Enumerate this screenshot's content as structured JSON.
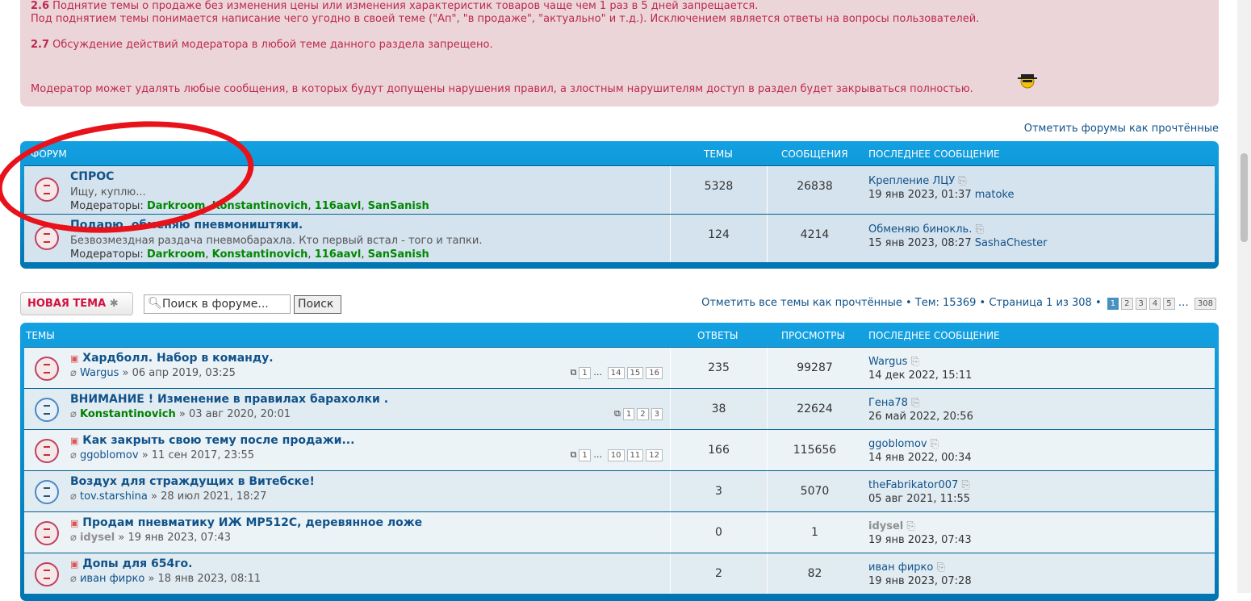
{
  "rules": {
    "r26_num": "2.6",
    "r26": " Поднятие темы о продаже без изменения цены или изменения характеристик товаров чаще чем 1 раз в 5 дней запрещается.",
    "r26b": "Под поднятием темы понимается написание чего угодно в своей теме (\"Ап\", \"в продаже\", \"актуально\" и т.д.). Исключением является ответы на вопросы пользователей.",
    "r27_num": "2.7",
    "r27": " Обсуждение действий модератора в любой теме данного раздела запрещено.",
    "note": "Модератор может удалять любые сообщения, в которых будут допущены нарушения правил, а злостным нарушителям доступ в раздел будет закрываться полностью."
  },
  "mark_forums": "Отметить форумы как прочтённые",
  "forums": {
    "headers": {
      "forum": "Форум",
      "topics": "Темы",
      "posts": "Сообщения",
      "last": "Последнее сообщение"
    },
    "moderators_label": "Модераторы: ",
    "rows": [
      {
        "title": "СПРОС",
        "desc": "Ищу, куплю...",
        "mods": [
          "Darkroom",
          "Konstantinovich",
          "116aavl",
          "SanSanish"
        ],
        "topics": "5328",
        "posts": "26838",
        "last_title": "Крепление ЛЦУ",
        "last_date": "19 янв 2023, 01:37",
        "last_user": "matoke"
      },
      {
        "title": "Подарю, обменяю пневмоништяки.",
        "desc": "Безвозмездная раздача пневмобарахла. Кто первый встал - того и тапки.",
        "mods": [
          "Darkroom",
          "Konstantinovich",
          "116aavl",
          "SanSanish"
        ],
        "topics": "124",
        "posts": "4214",
        "last_title": "Обменяю бинокль.",
        "last_date": "15 янв 2023, 08:27",
        "last_user": "SashaChester"
      }
    ]
  },
  "toolbar": {
    "new_topic": "НОВАЯ ТЕМА",
    "search_placeholder": "Поиск в форуме...",
    "search_button": "Поиск",
    "mark_topics": "Отметить все темы как прочтённые",
    "topics_count": "Тем: 15369",
    "page_info": "Страница 1 из 308",
    "pages": [
      "1",
      "2",
      "3",
      "4",
      "5",
      "...",
      "308"
    ]
  },
  "topics": {
    "headers": {
      "topics": "Темы",
      "replies": "Ответы",
      "views": "Просмотры",
      "last": "Последнее сообщение"
    },
    "rows": [
      {
        "title": "Хардболл. Набор в команду.",
        "author": "Wargus",
        "date": "06 апр 2019, 03:25",
        "pages": [
          "1",
          "...",
          "14",
          "15",
          "16"
        ],
        "replies": "235",
        "views": "99287",
        "last_user": "Wargus",
        "last_date": "14 дек 2022, 15:11",
        "icon": "red",
        "attach": true,
        "prefix": true
      },
      {
        "title": "ВНИМАНИЕ ! Изменение в правилах барахолки .",
        "author": "Konstantinovich",
        "author_color": "#008000",
        "date": "03 авг 2020, 20:01",
        "pages": [
          "1",
          "2",
          "3"
        ],
        "replies": "38",
        "views": "22624",
        "last_user": "Гена78",
        "last_date": "26 май 2022, 20:56",
        "icon": "blue",
        "attach": true,
        "prefix": false
      },
      {
        "title": "Как закрыть свою тему после продажи...",
        "author": "ggoblomov",
        "date": "11 сен 2017, 23:55",
        "pages": [
          "1",
          "...",
          "10",
          "11",
          "12"
        ],
        "replies": "166",
        "views": "115656",
        "last_user": "ggoblomov",
        "last_date": "14 янв 2022, 00:34",
        "icon": "red",
        "attach": true,
        "prefix": true
      },
      {
        "title": "Воздух для страждущих в Витебске!",
        "author": "tov.starshina",
        "date": "28 июл 2021, 18:27",
        "pages": [],
        "replies": "3",
        "views": "5070",
        "last_user": "theFabrikator007",
        "last_date": "05 авг 2021, 11:55",
        "icon": "blue",
        "attach": true,
        "prefix": false
      },
      {
        "title": "Продам пневматику ИЖ МР512С, деревянное ложе",
        "author": "idysel",
        "author_color": "#8f8f8f",
        "date": "19 янв 2023, 07:43",
        "pages": [],
        "replies": "0",
        "views": "1",
        "last_user": "idysel",
        "last_date": "19 янв 2023, 07:43",
        "icon": "red",
        "attach": true,
        "prefix": true
      },
      {
        "title": "Допы для 654го.",
        "author": "иван фирко",
        "date": "18 янв 2023, 08:11",
        "pages": [],
        "replies": "2",
        "views": "82",
        "last_user": "иван фирко",
        "last_date": "19 янв 2023, 07:28",
        "icon": "red",
        "attach": true,
        "prefix": true
      }
    ]
  },
  "colors": {
    "accent": "#0076b1",
    "rules_bg": "#ecd5d8",
    "rules_text": "#bc2a4d",
    "moderator": "#008000",
    "annotation": "#e8121b"
  }
}
